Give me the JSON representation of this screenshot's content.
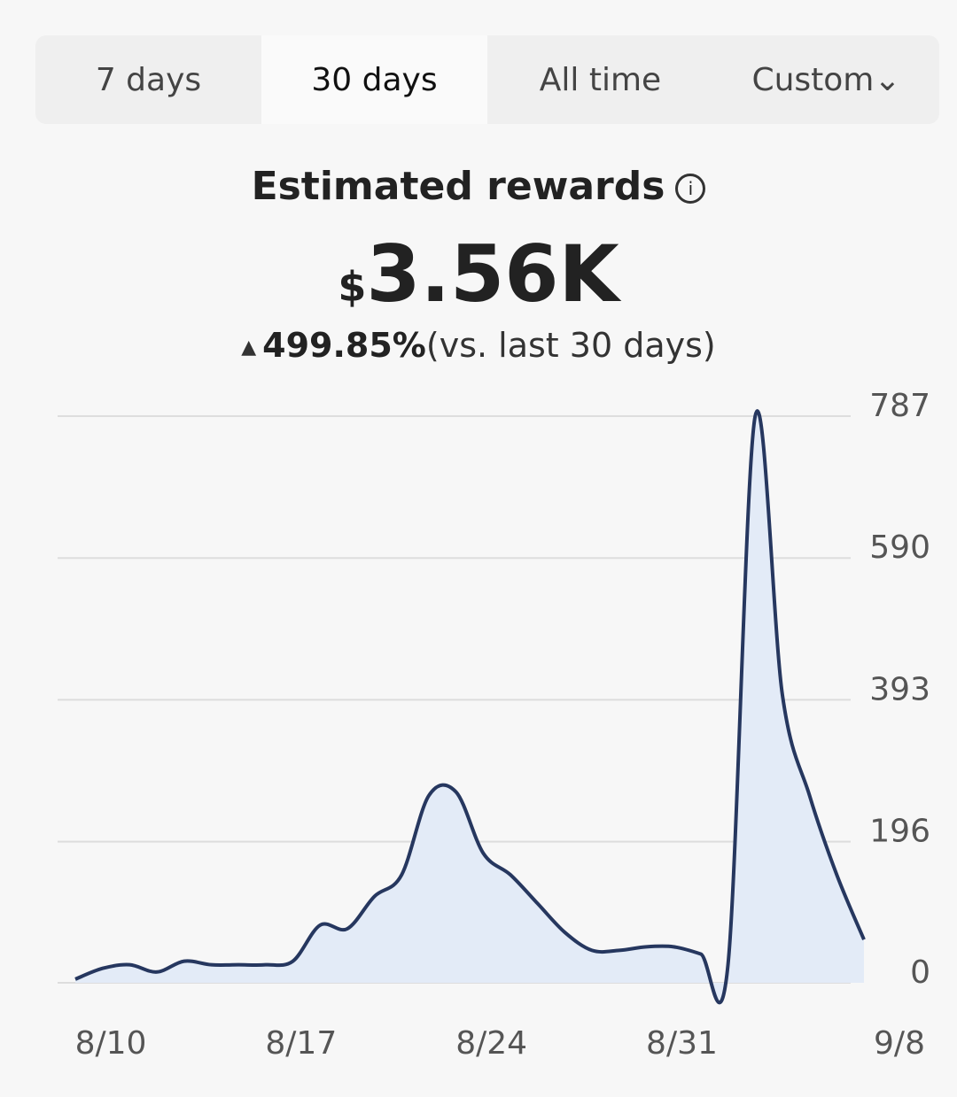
{
  "tabs": [
    "7 days",
    "30 days",
    "All time",
    "Custom"
  ],
  "selected_tab": 1,
  "header": {
    "title": "Estimated rewards",
    "currency": "$",
    "amount": "3.56K",
    "change": "499.85%",
    "change_note": "(vs. last 30 days)"
  },
  "chart_data": {
    "type": "area",
    "categories": [
      "8/10",
      null,
      null,
      null,
      null,
      null,
      null,
      "8/17",
      null,
      null,
      null,
      null,
      null,
      null,
      "8/24",
      null,
      null,
      null,
      null,
      null,
      null,
      "8/31",
      null,
      null,
      null,
      null,
      null,
      null,
      null,
      "9/8"
    ],
    "values": [
      5,
      20,
      25,
      15,
      30,
      25,
      25,
      25,
      30,
      80,
      75,
      120,
      150,
      260,
      265,
      180,
      150,
      110,
      70,
      45,
      45,
      50,
      50,
      40,
      25,
      787,
      400,
      260,
      150,
      60
    ],
    "color": "#26375f",
    "fill": "#e3ebf7",
    "ylim": [
      0,
      787
    ],
    "yticks": [
      0,
      196,
      393,
      590,
      787
    ],
    "grid": true
  }
}
